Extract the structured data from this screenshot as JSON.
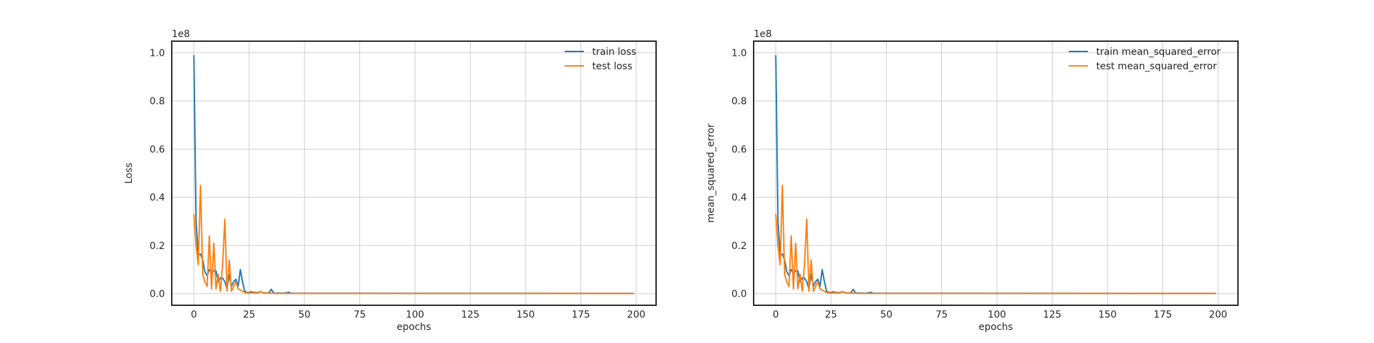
{
  "chart_data": [
    {
      "type": "line",
      "title": "",
      "xlabel": "epochs",
      "ylabel": "Loss",
      "xlim": [
        -10,
        209
      ],
      "ylim": [
        -0.048,
        1.048
      ],
      "xticks": [
        "0",
        "25",
        "50",
        "75",
        "100",
        "125",
        "150",
        "175",
        "200"
      ],
      "yticks": [
        "0.0",
        "0.2",
        "0.4",
        "0.6",
        "0.8",
        "1.0"
      ],
      "y_offset_label": "1e8",
      "grid": true,
      "legend_position": "upper-right",
      "series": [
        {
          "name": "train loss",
          "color": "#1f77b4",
          "x_range": [
            0,
            199
          ],
          "values": [
            0.99,
            0.3,
            0.16,
            0.165,
            0.14,
            0.09,
            0.075,
            0.1,
            0.09,
            0.095,
            0.095,
            0.05,
            0.065,
            0.065,
            0.05,
            0.02,
            0.08,
            0.03,
            0.05,
            0.06,
            0.03,
            0.1,
            0.05,
            0.01,
            0.005,
            0.005,
            0.008,
            0.005,
            0.005,
            0.004,
            0.008,
            0.005,
            0.003,
            0.003,
            0.004,
            0.018,
            0.004,
            0.002,
            0.003,
            0.002,
            0.002,
            0.002,
            0.004,
            0.006,
            0.002,
            0.001
          ]
        },
        {
          "name": "test loss",
          "color": "#ff7f0e",
          "x_range": [
            0,
            199
          ],
          "values": [
            0.33,
            0.2,
            0.12,
            0.45,
            0.08,
            0.05,
            0.03,
            0.24,
            0.02,
            0.21,
            0.02,
            0.08,
            0.01,
            0.12,
            0.31,
            0.01,
            0.14,
            0.01,
            0.03,
            0.05,
            0.02,
            0.015,
            0.01,
            0.005,
            0.003,
            0.002,
            0.004,
            0.003,
            0.003,
            0.002,
            0.01,
            0.004,
            0.002,
            0.003,
            0.002,
            0.002,
            0.002,
            0.001,
            0.001,
            0.001,
            0.001,
            0.001,
            0.001,
            0.001,
            0.001,
            0.001
          ]
        }
      ]
    },
    {
      "type": "line",
      "title": "",
      "xlabel": "epochs",
      "ylabel": "mean_squared_error",
      "xlim": [
        -10,
        209
      ],
      "ylim": [
        -0.048,
        1.048
      ],
      "xticks": [
        "0",
        "25",
        "50",
        "75",
        "100",
        "125",
        "150",
        "175",
        "200"
      ],
      "yticks": [
        "0.0",
        "0.2",
        "0.4",
        "0.6",
        "0.8",
        "1.0"
      ],
      "y_offset_label": "1e8",
      "grid": true,
      "legend_position": "upper-right",
      "series": [
        {
          "name": "train mean_squared_error",
          "color": "#1f77b4",
          "x_range": [
            0,
            199
          ],
          "values": [
            0.99,
            0.3,
            0.16,
            0.165,
            0.14,
            0.09,
            0.075,
            0.1,
            0.09,
            0.095,
            0.095,
            0.05,
            0.065,
            0.065,
            0.05,
            0.02,
            0.08,
            0.03,
            0.05,
            0.06,
            0.03,
            0.1,
            0.05,
            0.01,
            0.005,
            0.005,
            0.008,
            0.005,
            0.005,
            0.004,
            0.008,
            0.005,
            0.003,
            0.003,
            0.004,
            0.018,
            0.004,
            0.002,
            0.003,
            0.002,
            0.002,
            0.002,
            0.004,
            0.006,
            0.002,
            0.001
          ]
        },
        {
          "name": "test mean_squared_error",
          "color": "#ff7f0e",
          "x_range": [
            0,
            199
          ],
          "values": [
            0.33,
            0.2,
            0.12,
            0.45,
            0.08,
            0.05,
            0.03,
            0.24,
            0.02,
            0.21,
            0.02,
            0.08,
            0.01,
            0.12,
            0.31,
            0.01,
            0.14,
            0.01,
            0.03,
            0.05,
            0.02,
            0.015,
            0.01,
            0.005,
            0.003,
            0.002,
            0.004,
            0.003,
            0.003,
            0.002,
            0.01,
            0.004,
            0.002,
            0.003,
            0.002,
            0.002,
            0.002,
            0.001,
            0.001,
            0.001,
            0.001,
            0.001,
            0.001,
            0.001,
            0.001,
            0.001
          ]
        }
      ]
    }
  ]
}
